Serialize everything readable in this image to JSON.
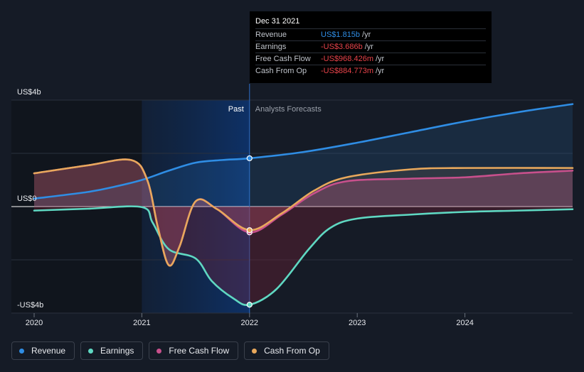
{
  "chart_data": {
    "type": "line",
    "x_axis": {
      "min": 2020,
      "max": 2025,
      "tick_labels": [
        "2020",
        "2021",
        "2022",
        "2023",
        "2024"
      ],
      "tick_values": [
        2020,
        2021,
        2022,
        2023,
        2024
      ]
    },
    "y_axis": {
      "min": -4,
      "max": 4,
      "unit": "US$ billions",
      "tick_labels": [
        "US$4b",
        "US$0",
        "-US$4b"
      ],
      "tick_values": [
        4,
        0,
        -4
      ]
    },
    "region_labels": {
      "past": "Past",
      "forecast": "Analysts Forecasts"
    },
    "divider_x": 2022,
    "series": [
      {
        "name": "Revenue",
        "color": "#2f8de4",
        "points": [
          [
            2020,
            0.3
          ],
          [
            2020.5,
            0.55
          ],
          [
            2020.75,
            0.75
          ],
          [
            2021,
            1.0
          ],
          [
            2021.25,
            1.35
          ],
          [
            2021.5,
            1.65
          ],
          [
            2021.75,
            1.75
          ],
          [
            2022,
            1.815
          ],
          [
            2022.5,
            2.05
          ],
          [
            2023,
            2.4
          ],
          [
            2023.5,
            2.8
          ],
          [
            2024,
            3.2
          ],
          [
            2024.5,
            3.55
          ],
          [
            2025,
            3.85
          ]
        ]
      },
      {
        "name": "Earnings",
        "color": "#5fd8c2",
        "points": [
          [
            2020,
            -0.15
          ],
          [
            2020.5,
            -0.08
          ],
          [
            2021,
            -0.02
          ],
          [
            2021.1,
            -0.6
          ],
          [
            2021.25,
            -1.6
          ],
          [
            2021.5,
            -1.95
          ],
          [
            2021.65,
            -2.8
          ],
          [
            2021.85,
            -3.45
          ],
          [
            2022,
            -3.686
          ],
          [
            2022.25,
            -3.1
          ],
          [
            2022.55,
            -1.6
          ],
          [
            2022.75,
            -0.8
          ],
          [
            2023,
            -0.45
          ],
          [
            2023.5,
            -0.3
          ],
          [
            2024,
            -0.2
          ],
          [
            2024.5,
            -0.15
          ],
          [
            2025,
            -0.1
          ]
        ]
      },
      {
        "name": "Free Cash Flow",
        "color": "#c8508c",
        "points": [
          [
            2020,
            1.25
          ],
          [
            2020.5,
            1.55
          ],
          [
            2020.9,
            1.75
          ],
          [
            2021.05,
            1.0
          ],
          [
            2021.15,
            -0.8
          ],
          [
            2021.25,
            -2.2
          ],
          [
            2021.35,
            -1.5
          ],
          [
            2021.5,
            0.2
          ],
          [
            2021.7,
            -0.1
          ],
          [
            2022,
            -0.968
          ],
          [
            2022.3,
            -0.3
          ],
          [
            2022.6,
            0.5
          ],
          [
            2022.9,
            0.95
          ],
          [
            2023.5,
            1.05
          ],
          [
            2024,
            1.1
          ],
          [
            2024.5,
            1.25
          ],
          [
            2025,
            1.35
          ]
        ]
      },
      {
        "name": "Cash From Op",
        "color": "#e8a85c",
        "points": [
          [
            2020,
            1.25
          ],
          [
            2020.5,
            1.55
          ],
          [
            2020.9,
            1.75
          ],
          [
            2021.05,
            1.0
          ],
          [
            2021.15,
            -0.8
          ],
          [
            2021.25,
            -2.2
          ],
          [
            2021.35,
            -1.5
          ],
          [
            2021.5,
            0.2
          ],
          [
            2021.7,
            -0.1
          ],
          [
            2022,
            -0.885
          ],
          [
            2022.3,
            -0.25
          ],
          [
            2022.6,
            0.6
          ],
          [
            2022.9,
            1.1
          ],
          [
            2023.5,
            1.4
          ],
          [
            2024,
            1.45
          ],
          [
            2025,
            1.45
          ]
        ]
      }
    ],
    "tooltip": {
      "date": "Dec 31 2021",
      "rows": [
        {
          "label": "Revenue",
          "value": "US$1.815b",
          "unit": "/yr",
          "color": "#2f8de4"
        },
        {
          "label": "Earnings",
          "value": "-US$3.686b",
          "unit": "/yr",
          "color": "#e8434a"
        },
        {
          "label": "Free Cash Flow",
          "value": "-US$968.426m",
          "unit": "/yr",
          "color": "#e8434a"
        },
        {
          "label": "Cash From Op",
          "value": "-US$884.773m",
          "unit": "/yr",
          "color": "#e8434a"
        }
      ]
    }
  },
  "legend": [
    {
      "label": "Revenue",
      "color": "#2f8de4"
    },
    {
      "label": "Earnings",
      "color": "#5fd8c2"
    },
    {
      "label": "Free Cash Flow",
      "color": "#c8508c"
    },
    {
      "label": "Cash From Op",
      "color": "#e8a85c"
    }
  ]
}
